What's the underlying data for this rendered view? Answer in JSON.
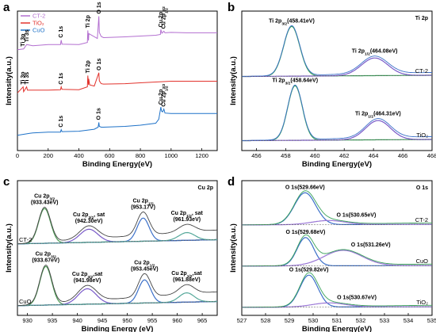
{
  "panels": [
    {
      "id": "a",
      "letter": "a"
    },
    {
      "id": "b",
      "letter": "b"
    },
    {
      "id": "c",
      "letter": "c"
    },
    {
      "id": "d",
      "letter": "d"
    }
  ],
  "chart_data": [
    {
      "panel": "a",
      "type": "line",
      "xlabel": "Binding Energy(eV)",
      "ylabel": "Intensity(a.u.)",
      "xlim": [
        0,
        1300
      ],
      "xticks": [
        0,
        200,
        400,
        600,
        800,
        1000,
        1200
      ],
      "legend": {
        "placement": "top-left",
        "entries": [
          {
            "label": "CT-2",
            "color": "#b36fd0"
          },
          {
            "label": "TiO₂",
            "color": "#e2332d"
          },
          {
            "label": "CuO",
            "color": "#1f72c8"
          }
        ]
      },
      "series": [
        {
          "name": "CT-2",
          "color": "#b36fd0",
          "offset": 2.0,
          "x": [
            0,
            40,
            60,
            100,
            200,
            280,
            285,
            290,
            400,
            455,
            458,
            462,
            465,
            520,
            530,
            533,
            545,
            560,
            700,
            800,
            900,
            930,
            933,
            940,
            953,
            960,
            1000,
            1100,
            1200,
            1300
          ],
          "y": [
            0.42,
            0.44,
            0.55,
            0.52,
            0.55,
            0.55,
            0.66,
            0.56,
            0.55,
            0.6,
            0.9,
            0.65,
            0.82,
            0.7,
            1.25,
            0.85,
            0.75,
            0.72,
            0.74,
            0.76,
            0.78,
            0.8,
            0.92,
            0.83,
            0.88,
            0.84,
            0.85,
            0.84,
            0.84,
            0.84
          ]
        },
        {
          "name": "TiO₂",
          "color": "#e2332d",
          "offset": 1.0,
          "x": [
            0,
            37,
            40,
            60,
            65,
            100,
            200,
            280,
            285,
            290,
            400,
            455,
            458,
            462,
            464,
            470,
            500,
            530,
            533,
            545,
            560,
            700,
            800,
            900,
            1000,
            1100,
            1200,
            1300
          ],
          "y": [
            0.35,
            0.5,
            0.38,
            0.5,
            0.42,
            0.42,
            0.42,
            0.43,
            0.5,
            0.44,
            0.43,
            0.5,
            0.78,
            0.55,
            0.7,
            0.55,
            0.52,
            0.85,
            0.65,
            0.58,
            0.57,
            0.58,
            0.6,
            0.62,
            0.64,
            0.64,
            0.64,
            0.64
          ]
        },
        {
          "name": "CuO",
          "color": "#1f72c8",
          "offset": 0.0,
          "x": [
            0,
            80,
            100,
            200,
            280,
            285,
            290,
            400,
            500,
            525,
            530,
            533,
            545,
            560,
            700,
            800,
            900,
            920,
            933,
            938,
            945,
            953,
            960,
            1000,
            1100,
            1200,
            1300
          ],
          "y": [
            0.3,
            0.35,
            0.36,
            0.38,
            0.38,
            0.44,
            0.39,
            0.4,
            0.45,
            0.5,
            0.62,
            0.52,
            0.5,
            0.5,
            0.52,
            0.55,
            0.6,
            0.7,
            1.0,
            0.9,
            0.88,
            0.95,
            0.85,
            0.84,
            0.84,
            0.84,
            0.84
          ]
        }
      ],
      "annotations": [
        {
          "text": "O 1s",
          "series": "CT-2",
          "x": 531
        },
        {
          "text": "Cu 2p3/2",
          "series": "CT-2",
          "x": 933
        },
        {
          "text": "Cu 2p1/2",
          "series": "CT-2",
          "x": 953
        },
        {
          "text": "Ti 2p",
          "series": "CT-2",
          "x": 459
        },
        {
          "text": "C 1s",
          "series": "CT-2",
          "x": 285
        },
        {
          "text": "Ti 3p",
          "series": "CT-2",
          "x": 37
        },
        {
          "text": "Ti 3s",
          "series": "CT-2",
          "x": 62
        },
        {
          "text": "O 1s",
          "series": "TiO₂",
          "x": 531
        },
        {
          "text": "Ti 2p",
          "series": "TiO₂",
          "x": 459
        },
        {
          "text": "C 1s",
          "series": "TiO₂",
          "x": 285
        },
        {
          "text": "Ti 3p",
          "series": "TiO₂",
          "x": 37
        },
        {
          "text": "Ti 3s",
          "series": "TiO₂",
          "x": 62
        },
        {
          "text": "O 1s",
          "series": "CuO",
          "x": 530
        },
        {
          "text": "Cu 2p3/2",
          "series": "CuO",
          "x": 933
        },
        {
          "text": "Cu 2p1/2",
          "series": "CuO",
          "x": 953
        },
        {
          "text": "C 1s",
          "series": "CuO",
          "x": 285
        }
      ]
    },
    {
      "panel": "b",
      "type": "line",
      "title": "Ti 2p",
      "xlabel": "Binding Energy(eV)",
      "ylabel": "Intensity(a.u.)",
      "xlim": [
        455,
        468
      ],
      "xticks": [
        456,
        458,
        460,
        462,
        464,
        466,
        468
      ],
      "spectra": [
        {
          "name": "CT-2",
          "offset": 1.0,
          "peaks": [
            {
              "label": "Ti 2p3/2(458.41eV)",
              "x": 458.41,
              "height": 0.62,
              "width": 0.55
            },
            {
              "label": "Ti 2p1/2(464.08eV)",
              "x": 464.08,
              "height": 0.22,
              "width": 0.9
            }
          ],
          "colors": {
            "fit": "#3aa35b",
            "fit2": "#7a5bc9",
            "raw": "#3c70c9"
          }
        },
        {
          "name": "TiO₂",
          "offset": 0.0,
          "peaks": [
            {
              "label": "Ti 2p3/2(458.64eV)",
              "x": 458.64,
              "height": 0.68,
              "width": 0.5
            },
            {
              "label": "Ti 2p1/2(464.31eV)",
              "x": 464.31,
              "height": 0.24,
              "width": 0.85
            }
          ],
          "colors": {
            "fit": "#3aa35b",
            "fit2": "#7a5bc9",
            "raw": "#3c70c9"
          }
        }
      ]
    },
    {
      "panel": "c",
      "type": "line",
      "title": "Cu 2p",
      "xlabel": "Binding Energy (eV)",
      "ylabel": "Intensity(a.u.)",
      "xlim": [
        928,
        968
      ],
      "xticks": [
        930,
        935,
        940,
        945,
        950,
        955,
        960,
        965
      ],
      "spectra": [
        {
          "name": "CT-2",
          "offset": 1.0,
          "peaks": [
            {
              "label": "Cu 2p3/2 (933.43eV)",
              "x": 933.43,
              "height": 0.45,
              "width": 1.2
            },
            {
              "label": "Cu 2p3/2, sat (942.30eV)",
              "x": 942.3,
              "height": 0.17,
              "width": 1.8
            },
            {
              "label": "Cu 2p1/2 (953.17V)",
              "x": 953.17,
              "height": 0.3,
              "width": 1.2
            },
            {
              "label": "Cu 2p1/2, sat (961.93eV)",
              "x": 961.93,
              "height": 0.1,
              "width": 1.6
            }
          ]
        },
        {
          "name": "CuO",
          "offset": 0.0,
          "peaks": [
            {
              "label": "Cu 2p3/2 (933.67eV)",
              "x": 933.67,
              "height": 0.5,
              "width": 1.2
            },
            {
              "label": "Cu 2p3/2,sat (941.98eV)",
              "x": 941.98,
              "height": 0.2,
              "width": 1.8
            },
            {
              "label": "Cu 2p1/2 (953.45eV)",
              "x": 953.45,
              "height": 0.3,
              "width": 1.2
            },
            {
              "label": "Cu 2p1/2,sat (961.88eV)",
              "x": 961.88,
              "height": 0.12,
              "width": 1.5
            }
          ]
        }
      ]
    },
    {
      "panel": "d",
      "type": "line",
      "title": "O 1s",
      "xlabel": "Binding Energy(eV)",
      "ylabel": "Intensity(a.u.)",
      "xlim": [
        527,
        535
      ],
      "xticks": [
        527,
        528,
        529,
        530,
        531,
        532,
        533,
        534,
        535
      ],
      "spectra": [
        {
          "name": "CT-2",
          "offset": 2.0,
          "peaks": [
            {
              "label": "O 1s(529.66eV)",
              "x": 529.66,
              "height": 0.62,
              "width": 0.45
            },
            {
              "label": "O 1s(530.65eV)",
              "x": 530.65,
              "height": 0.08,
              "width": 0.7
            }
          ]
        },
        {
          "name": "CuO",
          "offset": 1.0,
          "peaks": [
            {
              "label": "O 1s(529.68eV)",
              "x": 529.68,
              "height": 0.55,
              "width": 0.35
            },
            {
              "label": "O 1s(531.26eV)",
              "x": 531.26,
              "height": 0.3,
              "width": 0.8
            }
          ]
        },
        {
          "name": "TiO₂",
          "offset": 0.0,
          "peaks": [
            {
              "label": "O 1s(529.82eV)",
              "x": 529.82,
              "height": 0.62,
              "width": 0.38
            },
            {
              "label": "O 1s(530.67eV)",
              "x": 530.67,
              "height": 0.08,
              "width": 0.7
            }
          ]
        }
      ]
    }
  ]
}
